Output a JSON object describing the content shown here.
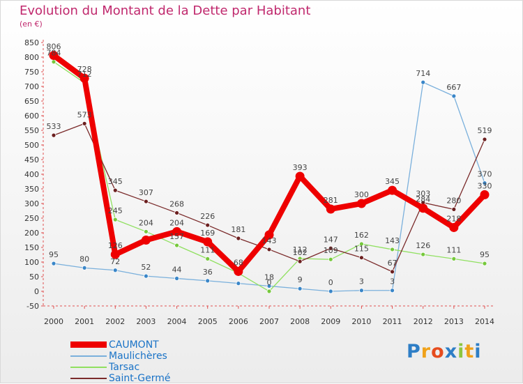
{
  "title": "Evolution du Montant de la Dette par Habitant",
  "subtitle": "(en €)",
  "logo": {
    "letters": [
      "P",
      "r",
      "o",
      "x",
      "i",
      "t",
      "i"
    ],
    "colors": [
      "#2e7ec6",
      "#f0a21a",
      "#e64c1e",
      "#2e7ec6",
      "#8dc63f",
      "#f0a21a",
      "#2e7ec6"
    ]
  },
  "chart_data": {
    "type": "line",
    "x": [
      2000,
      2001,
      2002,
      2003,
      2004,
      2005,
      2006,
      2007,
      2008,
      2009,
      2010,
      2011,
      2012,
      2013,
      2014
    ],
    "ylim": [
      -50,
      850
    ],
    "yticks": [
      -50,
      0,
      50,
      100,
      150,
      200,
      250,
      300,
      350,
      400,
      450,
      500,
      550,
      600,
      650,
      700,
      750,
      800,
      850
    ],
    "grid": false,
    "legend_position": "bottom-left",
    "series": [
      {
        "name": "CAUMONT",
        "color": "#ee0000",
        "marker": "#ee0000",
        "values": [
          806,
          728,
          126,
          175,
          204,
          169,
          68,
          193,
          393,
          281,
          300,
          345,
          284,
          218,
          330
        ],
        "labels": [
          "806",
          "728",
          "126",
          "",
          "204",
          "169",
          "68",
          "",
          "393",
          "281",
          "300",
          "345",
          "284",
          "218",
          "330"
        ]
      },
      {
        "name": "Maulichères",
        "color": "#7ab0dc",
        "marker": "#3a86c8",
        "values": [
          95,
          80,
          72,
          52,
          44,
          36,
          27,
          18,
          9,
          0,
          3,
          3,
          714,
          667,
          370
        ],
        "labels": [
          "95",
          "80",
          "72",
          "52",
          "44",
          "36",
          "",
          "18",
          "9",
          "0",
          "3",
          "3",
          "714",
          "667",
          "370"
        ]
      },
      {
        "name": "Tarsac",
        "color": "#90e060",
        "marker": "#76c83c",
        "values": [
          784,
          712,
          245,
          204,
          157,
          111,
          62,
          0,
          112,
          109,
          162,
          143,
          126,
          111,
          95
        ],
        "labels": [
          "784",
          "712",
          "245",
          "204",
          "157",
          "111",
          "",
          "0",
          "112",
          "109",
          "162",
          "143",
          "126",
          "111",
          "95"
        ]
      },
      {
        "name": "Saint-Germé",
        "color": "#7a2a2a",
        "marker": "#6b1f1f",
        "values": [
          533,
          573,
          345,
          307,
          268,
          226,
          181,
          143,
          102,
          147,
          115,
          67,
          303,
          280,
          519
        ],
        "labels": [
          "533",
          "573",
          "345",
          "307",
          "268",
          "226",
          "181",
          "143",
          "102",
          "147",
          "115",
          "67",
          "303",
          "280",
          "519"
        ]
      }
    ]
  }
}
